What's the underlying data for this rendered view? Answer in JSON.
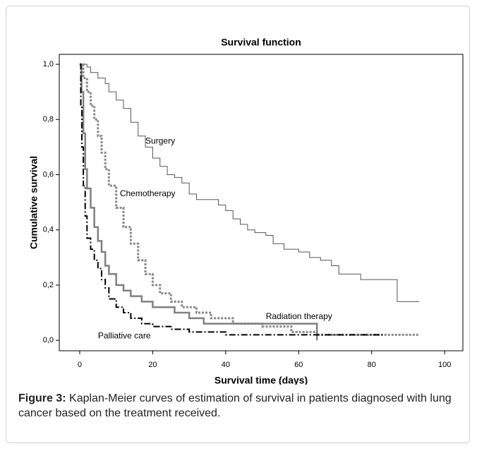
{
  "chart_data": {
    "type": "step",
    "title": "Survival function",
    "x_label": "Survival time (days)",
    "y_label": "Cumulative survival",
    "xlim": [
      -5.6,
      105
    ],
    "ylim": [
      -0.038,
      1.036
    ],
    "xticks": [
      0,
      20,
      40,
      60,
      80,
      100
    ],
    "yticks": [
      {
        "value": 0,
        "label": "0,0"
      },
      {
        "value": 0.2,
        "label": "0,2"
      },
      {
        "value": 0.4,
        "label": "0,4"
      },
      {
        "value": 0.6,
        "label": "0,6"
      },
      {
        "value": 0.8,
        "label": "0,8"
      },
      {
        "value": 1,
        "label": "1,0"
      }
    ],
    "series": [
      {
        "name": "Surgery",
        "color": "#555555",
        "style": "solid",
        "width": 1,
        "x": [
          0,
          2,
          3,
          5,
          7,
          8,
          10,
          12,
          14,
          16,
          18,
          20,
          22,
          24,
          26,
          28,
          30,
          32,
          36,
          38,
          40,
          42,
          44,
          46,
          48,
          51,
          53,
          56,
          60,
          63,
          66,
          69,
          71,
          77,
          87,
          93
        ],
        "values": [
          1.0,
          0.99,
          0.97,
          0.95,
          0.93,
          0.9,
          0.87,
          0.84,
          0.79,
          0.74,
          0.7,
          0.66,
          0.63,
          0.6,
          0.59,
          0.57,
          0.53,
          0.51,
          0.51,
          0.49,
          0.47,
          0.44,
          0.42,
          0.4,
          0.39,
          0.38,
          0.35,
          0.33,
          0.32,
          0.3,
          0.29,
          0.27,
          0.24,
          0.22,
          0.14,
          0.14
        ]
      },
      {
        "name": "Chemotherapy",
        "color": "#888888",
        "style": "dotted",
        "width": 3,
        "x": [
          0,
          1,
          2,
          3,
          4,
          5,
          6,
          7,
          8,
          10,
          12,
          14,
          16,
          18,
          20,
          22,
          25,
          28,
          32,
          36,
          42,
          50,
          58,
          65,
          93
        ],
        "values": [
          1.0,
          0.95,
          0.9,
          0.85,
          0.8,
          0.74,
          0.68,
          0.62,
          0.56,
          0.48,
          0.41,
          0.35,
          0.29,
          0.24,
          0.2,
          0.17,
          0.14,
          0.12,
          0.1,
          0.08,
          0.06,
          0.05,
          0.03,
          0.02,
          0.02
        ]
      },
      {
        "name": "Radiation therapy",
        "color": "#808080",
        "style": "solid",
        "width": 2.5,
        "x": [
          0,
          0.5,
          1,
          1.5,
          2,
          3,
          4,
          5,
          6,
          7,
          8,
          10,
          12,
          14,
          17,
          20,
          26,
          30,
          34,
          65
        ],
        "values": [
          1.0,
          0.9,
          0.75,
          0.62,
          0.55,
          0.48,
          0.41,
          0.36,
          0.32,
          0.27,
          0.24,
          0.2,
          0.18,
          0.16,
          0.14,
          0.12,
          0.1,
          0.08,
          0.06,
          0.0
        ]
      },
      {
        "name": "Palliative care",
        "color": "#000000",
        "style": "dashdot",
        "width": 2,
        "x": [
          0,
          0.3,
          0.6,
          1,
          1.5,
          2,
          3,
          4,
          5,
          6,
          7,
          8,
          10,
          12,
          14,
          17,
          20,
          25,
          30,
          40,
          83
        ],
        "values": [
          1.0,
          0.85,
          0.7,
          0.56,
          0.45,
          0.37,
          0.33,
          0.29,
          0.26,
          0.22,
          0.19,
          0.15,
          0.12,
          0.1,
          0.08,
          0.06,
          0.05,
          0.04,
          0.03,
          0.02,
          0.02
        ]
      }
    ]
  },
  "caption": {
    "label": "Figure 3:",
    "text": "Kaplan-Meier curves of estimation of survival in patients diagnosed with lung cancer based on the treatment received."
  }
}
